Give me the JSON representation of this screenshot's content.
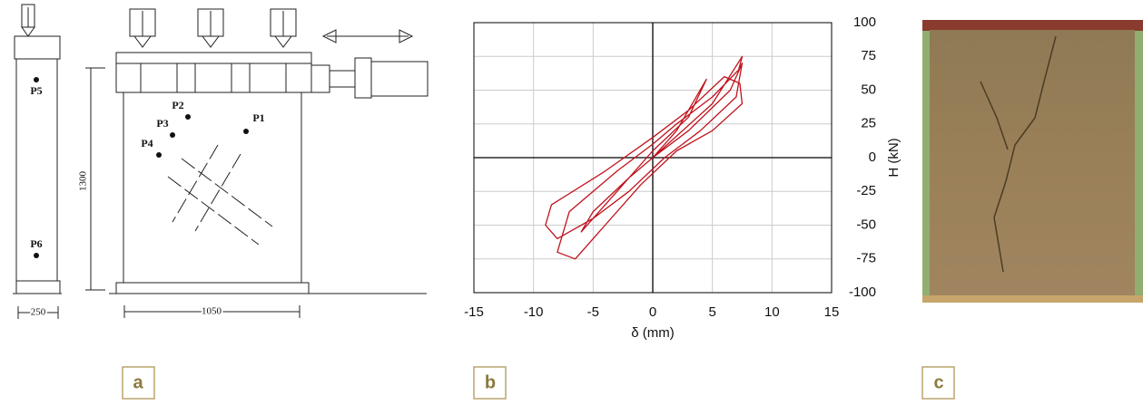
{
  "panels": {
    "a": {
      "label": "a",
      "points": [
        "P5",
        "P6",
        "P2",
        "P1",
        "P3",
        "P4"
      ],
      "dimensions": {
        "height": "1300",
        "width_side": "250",
        "width_front": "1050"
      }
    },
    "b": {
      "label": "b"
    },
    "c": {
      "label": "c"
    }
  },
  "chart_data": {
    "type": "line",
    "x_label": "δ (mm)",
    "y_label": "H (kN)",
    "color": "#c0121c",
    "xlim": [
      -15,
      15
    ],
    "xticks": [
      -15,
      -10,
      -5,
      0,
      5,
      10,
      15
    ],
    "ylim": [
      -100,
      100
    ],
    "yticks": [
      -100,
      -75,
      -50,
      -25,
      0,
      25,
      50,
      75,
      100
    ],
    "grid": true,
    "x": [
      0,
      2,
      4.5,
      3,
      0,
      -3,
      -6,
      -5,
      -2,
      0,
      5,
      7.5,
      7.2,
      5,
      2,
      0,
      -3,
      -7,
      -8,
      -6.5,
      -4,
      -1,
      2,
      5,
      7.5,
      7.3,
      6,
      3,
      0,
      -4,
      -8.5,
      -9,
      -8,
      -5,
      -2,
      1,
      4,
      7,
      7.5,
      6.5,
      3,
      0
    ],
    "values": [
      0,
      20,
      58,
      30,
      5,
      -25,
      -55,
      -40,
      -15,
      0,
      40,
      75,
      65,
      45,
      25,
      10,
      -10,
      -40,
      -70,
      -75,
      -50,
      -20,
      5,
      20,
      40,
      55,
      60,
      35,
      15,
      -10,
      -35,
      -50,
      -60,
      -45,
      -25,
      0,
      20,
      45,
      70,
      50,
      20,
      0
    ]
  }
}
